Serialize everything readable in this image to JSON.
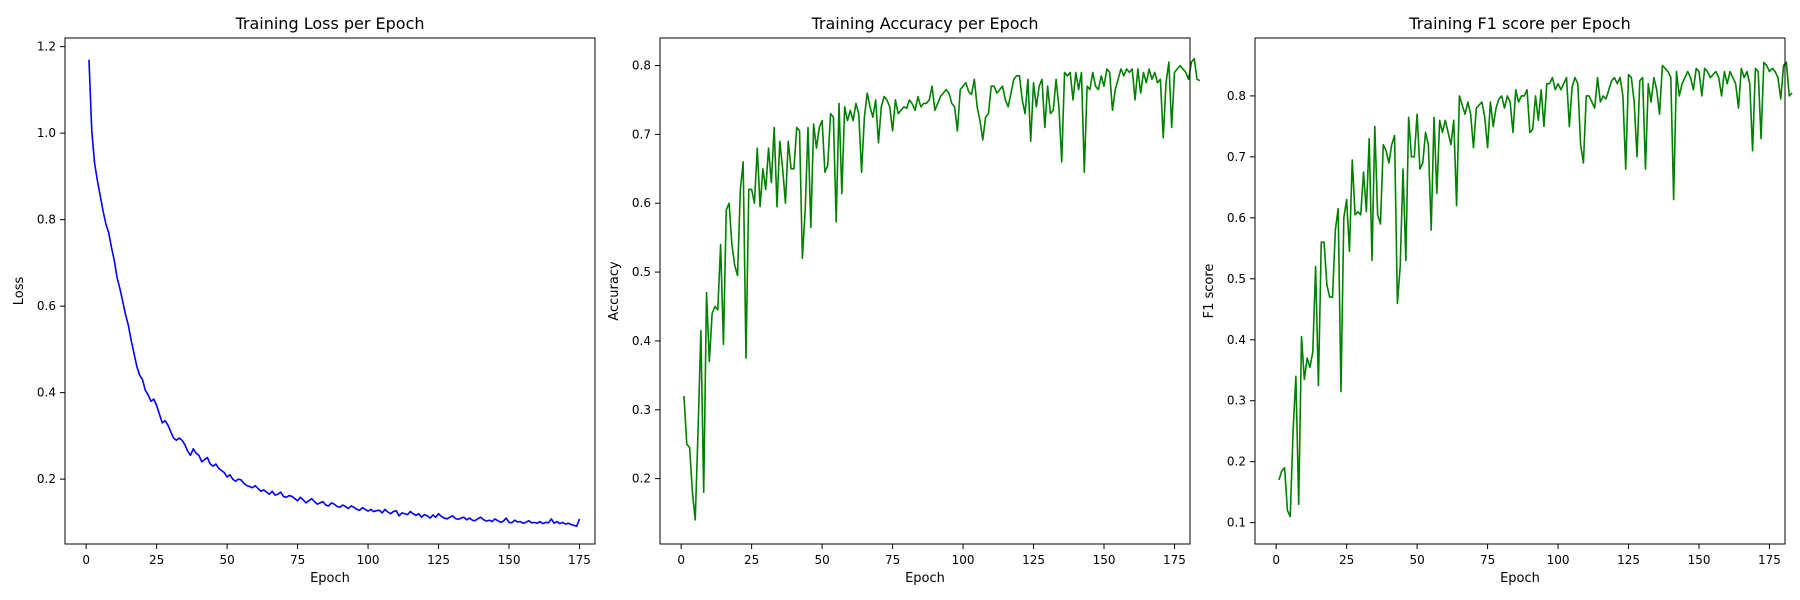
{
  "chart_data": [
    {
      "type": "line",
      "title": "Training Loss per Epoch",
      "xlabel": "Epoch",
      "ylabel": "Loss",
      "xlim": [
        -7.5,
        180.5
      ],
      "ylim": [
        0.05,
        1.22
      ],
      "xticks": [
        0,
        25,
        50,
        75,
        100,
        125,
        150,
        175
      ],
      "xtick_labels": [
        "0",
        "25",
        "50",
        "75",
        "100",
        "125",
        "150",
        "175"
      ],
      "yticks": [
        0.2,
        0.4,
        0.6,
        0.8,
        1.0,
        1.2
      ],
      "ytick_labels": [
        "0.2",
        "0.4",
        "0.6",
        "0.8",
        "1.0",
        "1.2"
      ],
      "grid": false,
      "color": "#0000ff",
      "x_start": 1,
      "values": [
        1.17,
        1.005,
        0.93,
        0.89,
        0.855,
        0.82,
        0.79,
        0.77,
        0.735,
        0.705,
        0.665,
        0.64,
        0.61,
        0.58,
        0.555,
        0.52,
        0.49,
        0.46,
        0.44,
        0.43,
        0.405,
        0.395,
        0.38,
        0.385,
        0.37,
        0.35,
        0.33,
        0.335,
        0.325,
        0.31,
        0.295,
        0.29,
        0.295,
        0.29,
        0.28,
        0.265,
        0.255,
        0.27,
        0.26,
        0.255,
        0.24,
        0.245,
        0.25,
        0.235,
        0.23,
        0.235,
        0.225,
        0.22,
        0.215,
        0.205,
        0.21,
        0.2,
        0.195,
        0.2,
        0.198,
        0.19,
        0.185,
        0.183,
        0.18,
        0.185,
        0.178,
        0.172,
        0.175,
        0.17,
        0.165,
        0.172,
        0.163,
        0.165,
        0.17,
        0.16,
        0.158,
        0.162,
        0.16,
        0.155,
        0.15,
        0.158,
        0.152,
        0.145,
        0.15,
        0.155,
        0.148,
        0.142,
        0.145,
        0.148,
        0.14,
        0.138,
        0.145,
        0.142,
        0.137,
        0.135,
        0.14,
        0.137,
        0.132,
        0.138,
        0.135,
        0.13,
        0.128,
        0.134,
        0.13,
        0.126,
        0.13,
        0.125,
        0.127,
        0.128,
        0.122,
        0.13,
        0.124,
        0.12,
        0.125,
        0.127,
        0.115,
        0.122,
        0.12,
        0.118,
        0.125,
        0.12,
        0.116,
        0.12,
        0.112,
        0.118,
        0.115,
        0.11,
        0.117,
        0.112,
        0.12,
        0.114,
        0.11,
        0.108,
        0.112,
        0.115,
        0.109,
        0.107,
        0.11,
        0.112,
        0.106,
        0.11,
        0.105,
        0.104,
        0.109,
        0.112,
        0.106,
        0.103,
        0.105,
        0.102,
        0.108,
        0.104,
        0.1,
        0.103,
        0.11,
        0.1,
        0.099,
        0.105,
        0.101,
        0.102,
        0.098,
        0.1,
        0.104,
        0.099,
        0.1,
        0.098,
        0.102,
        0.097,
        0.1,
        0.099,
        0.108,
        0.098,
        0.102,
        0.097,
        0.1,
        0.096,
        0.098,
        0.095,
        0.093,
        0.091,
        0.108
      ],
      "mark_names_prefix": "loss-point"
    },
    {
      "type": "line",
      "title": "Training Accuracy per Epoch",
      "xlabel": "Epoch",
      "ylabel": "Accuracy",
      "xlim": [
        -7.5,
        180.5
      ],
      "ylim": [
        0.105,
        0.84
      ],
      "xticks": [
        0,
        25,
        50,
        75,
        100,
        125,
        150,
        175
      ],
      "xtick_labels": [
        "0",
        "25",
        "50",
        "75",
        "100",
        "125",
        "150",
        "175"
      ],
      "yticks": [
        0.2,
        0.3,
        0.4,
        0.5,
        0.6,
        0.7,
        0.8
      ],
      "ytick_labels": [
        "0.2",
        "0.3",
        "0.4",
        "0.5",
        "0.6",
        "0.7",
        "0.8"
      ],
      "grid": false,
      "color": "#008000",
      "x_start": 1,
      "values": [
        0.32,
        0.25,
        0.245,
        0.18,
        0.14,
        0.27,
        0.415,
        0.18,
        0.47,
        0.37,
        0.44,
        0.45,
        0.445,
        0.54,
        0.395,
        0.59,
        0.6,
        0.54,
        0.51,
        0.495,
        0.62,
        0.66,
        0.375,
        0.62,
        0.62,
        0.6,
        0.68,
        0.595,
        0.65,
        0.62,
        0.68,
        0.63,
        0.71,
        0.595,
        0.69,
        0.65,
        0.6,
        0.69,
        0.65,
        0.65,
        0.71,
        0.705,
        0.52,
        0.59,
        0.71,
        0.565,
        0.715,
        0.68,
        0.71,
        0.72,
        0.645,
        0.655,
        0.73,
        0.725,
        0.573,
        0.745,
        0.614,
        0.74,
        0.72,
        0.735,
        0.72,
        0.745,
        0.73,
        0.645,
        0.725,
        0.76,
        0.74,
        0.725,
        0.75,
        0.688,
        0.74,
        0.755,
        0.75,
        0.74,
        0.705,
        0.75,
        0.73,
        0.735,
        0.74,
        0.738,
        0.75,
        0.744,
        0.735,
        0.755,
        0.74,
        0.745,
        0.745,
        0.75,
        0.77,
        0.735,
        0.745,
        0.755,
        0.76,
        0.765,
        0.76,
        0.745,
        0.74,
        0.705,
        0.765,
        0.77,
        0.775,
        0.762,
        0.758,
        0.78,
        0.74,
        0.72,
        0.692,
        0.725,
        0.73,
        0.77,
        0.77,
        0.76,
        0.765,
        0.77,
        0.75,
        0.74,
        0.76,
        0.78,
        0.785,
        0.785,
        0.75,
        0.73,
        0.78,
        0.69,
        0.775,
        0.74,
        0.77,
        0.78,
        0.71,
        0.77,
        0.73,
        0.735,
        0.78,
        0.74,
        0.66,
        0.79,
        0.785,
        0.79,
        0.75,
        0.79,
        0.765,
        0.79,
        0.645,
        0.77,
        0.765,
        0.79,
        0.77,
        0.765,
        0.785,
        0.77,
        0.795,
        0.79,
        0.735,
        0.765,
        0.78,
        0.795,
        0.785,
        0.795,
        0.79,
        0.795,
        0.75,
        0.795,
        0.76,
        0.79,
        0.775,
        0.795,
        0.78,
        0.79,
        0.775,
        0.78,
        0.695,
        0.775,
        0.805,
        0.71,
        0.79,
        0.795,
        0.8,
        0.795,
        0.79,
        0.78,
        0.805,
        0.81,
        0.78,
        0.778
      ],
      "mark_names_prefix": "accuracy-point"
    },
    {
      "type": "line",
      "title": "Training F1 score per Epoch",
      "xlabel": "Epoch",
      "ylabel": "F1 score",
      "xlim": [
        -7.5,
        180.5
      ],
      "ylim": [
        0.065,
        0.895
      ],
      "xticks": [
        0,
        25,
        50,
        75,
        100,
        125,
        150,
        175
      ],
      "xtick_labels": [
        "0",
        "25",
        "50",
        "75",
        "100",
        "125",
        "150",
        "175"
      ],
      "yticks": [
        0.1,
        0.2,
        0.3,
        0.4,
        0.5,
        0.6,
        0.7,
        0.8
      ],
      "ytick_labels": [
        "0.1",
        "0.2",
        "0.3",
        "0.4",
        "0.5",
        "0.6",
        "0.7",
        "0.8"
      ],
      "grid": false,
      "color": "#008000",
      "x_start": 1,
      "values": [
        0.17,
        0.185,
        0.19,
        0.12,
        0.11,
        0.25,
        0.34,
        0.13,
        0.405,
        0.335,
        0.37,
        0.355,
        0.38,
        0.52,
        0.325,
        0.56,
        0.56,
        0.49,
        0.47,
        0.47,
        0.58,
        0.615,
        0.315,
        0.6,
        0.63,
        0.545,
        0.695,
        0.605,
        0.61,
        0.605,
        0.675,
        0.61,
        0.73,
        0.53,
        0.75,
        0.605,
        0.59,
        0.72,
        0.71,
        0.69,
        0.72,
        0.735,
        0.46,
        0.52,
        0.68,
        0.53,
        0.765,
        0.7,
        0.7,
        0.77,
        0.68,
        0.69,
        0.74,
        0.72,
        0.58,
        0.765,
        0.64,
        0.76,
        0.74,
        0.76,
        0.74,
        0.72,
        0.76,
        0.62,
        0.8,
        0.785,
        0.77,
        0.79,
        0.77,
        0.715,
        0.78,
        0.785,
        0.79,
        0.765,
        0.715,
        0.79,
        0.75,
        0.78,
        0.795,
        0.8,
        0.78,
        0.8,
        0.79,
        0.74,
        0.81,
        0.79,
        0.8,
        0.8,
        0.81,
        0.74,
        0.745,
        0.8,
        0.76,
        0.81,
        0.75,
        0.82,
        0.82,
        0.83,
        0.81,
        0.82,
        0.81,
        0.82,
        0.83,
        0.75,
        0.815,
        0.83,
        0.82,
        0.72,
        0.69,
        0.8,
        0.8,
        0.79,
        0.78,
        0.83,
        0.79,
        0.8,
        0.795,
        0.81,
        0.825,
        0.83,
        0.82,
        0.83,
        0.8,
        0.68,
        0.835,
        0.83,
        0.79,
        0.7,
        0.825,
        0.83,
        0.68,
        0.82,
        0.79,
        0.83,
        0.81,
        0.77,
        0.85,
        0.845,
        0.84,
        0.83,
        0.63,
        0.84,
        0.8,
        0.82,
        0.83,
        0.84,
        0.83,
        0.81,
        0.845,
        0.84,
        0.8,
        0.845,
        0.84,
        0.83,
        0.835,
        0.84,
        0.83,
        0.8,
        0.84,
        0.82,
        0.84,
        0.83,
        0.82,
        0.78,
        0.845,
        0.83,
        0.84,
        0.82,
        0.71,
        0.845,
        0.84,
        0.73,
        0.855,
        0.85,
        0.84,
        0.845,
        0.84,
        0.83,
        0.795,
        0.85,
        0.855,
        0.8,
        0.805
      ],
      "mark_names_prefix": "f1-point"
    }
  ]
}
